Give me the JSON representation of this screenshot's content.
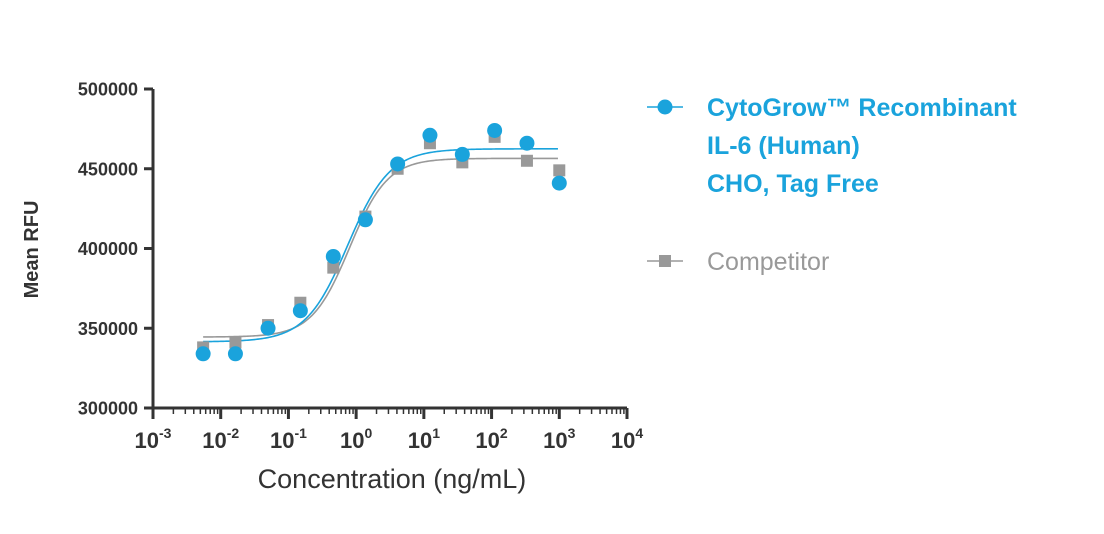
{
  "chart_data": {
    "type": "scatter",
    "xscale": "log",
    "xlabel": "Concentration (ng/mL)",
    "ylabel": "Mean RFU",
    "xlim": [
      0.001,
      10000
    ],
    "ylim": [
      300000,
      500000
    ],
    "x_ticks": [
      {
        "base": "10",
        "exp": "-3",
        "value": 0.001
      },
      {
        "base": "10",
        "exp": "-2",
        "value": 0.01
      },
      {
        "base": "10",
        "exp": "-1",
        "value": 0.1
      },
      {
        "base": "10",
        "exp": "0",
        "value": 1
      },
      {
        "base": "10",
        "exp": "1",
        "value": 10
      },
      {
        "base": "10",
        "exp": "2",
        "value": 100
      },
      {
        "base": "10",
        "exp": "3",
        "value": 1000
      },
      {
        "base": "10",
        "exp": "4",
        "value": 10000
      }
    ],
    "y_ticks": [
      "300000",
      "350000",
      "400000",
      "450000",
      "500000"
    ],
    "legend_position": "right",
    "series": [
      {
        "name_lines": [
          "CytoGrow™ Recombinant",
          "IL-6 (Human)",
          "CHO, Tag Free"
        ],
        "color": "#1aa3dc",
        "marker": "circle",
        "x": [
          0.0055,
          0.0165,
          0.05,
          0.15,
          0.46,
          1.37,
          4.1,
          12.3,
          37,
          111,
          333,
          1000
        ],
        "y": [
          334000,
          334000,
          350000,
          361000,
          395000,
          418000,
          453000,
          471000,
          459000,
          474000,
          466000,
          441000
        ],
        "fit": {
          "bottom": 341500,
          "top": 462500,
          "ec50": 0.75,
          "hill": 1.4
        }
      },
      {
        "name_lines": [
          "Competitor"
        ],
        "color": "#999999",
        "marker": "square",
        "x": [
          0.0055,
          0.0165,
          0.05,
          0.15,
          0.46,
          1.37,
          4.1,
          12.3,
          37,
          111,
          333,
          1000
        ],
        "y": [
          338000,
          341000,
          352000,
          366000,
          388000,
          420000,
          450000,
          466000,
          454000,
          470000,
          455000,
          449000
        ],
        "fit": {
          "bottom": 344500,
          "top": 456500,
          "ec50": 0.8,
          "hill": 1.55
        }
      }
    ]
  }
}
